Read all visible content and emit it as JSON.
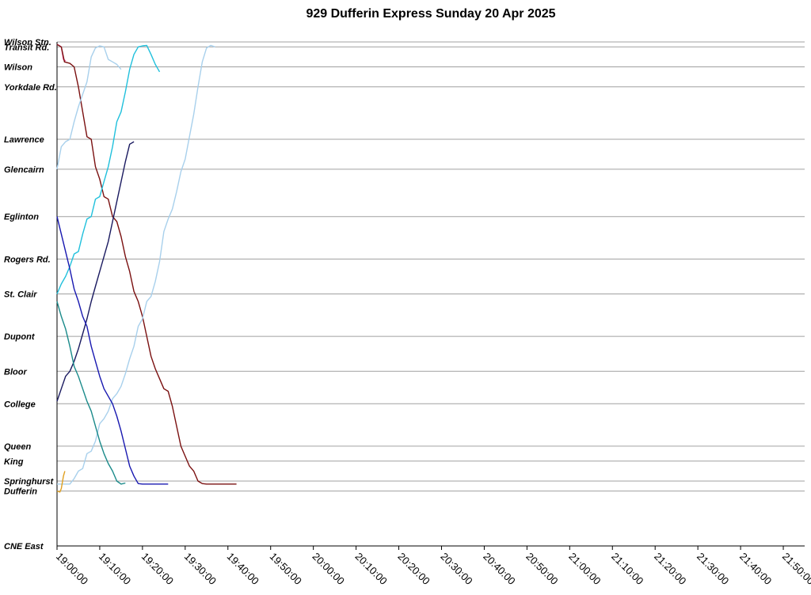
{
  "chart_data": {
    "type": "line",
    "title": "929 Dufferin Express Sunday 20 Apr 2025",
    "x_axis": {
      "unit": "time",
      "min": "19:00:00",
      "max": "21:55:00",
      "tick_labels": [
        "19:00:00",
        "19:10:00",
        "19:20:00",
        "19:30:00",
        "19:40:00",
        "19:50:00",
        "20:00:00",
        "20:10:00",
        "20:20:00",
        "20:30:00",
        "20:40:00",
        "20:50:00",
        "21:00:00",
        "21:10:00",
        "21:20:00",
        "21:30:00",
        "21:40:00",
        "21:50:00"
      ]
    },
    "stops": [
      {
        "name": "Wilson Stn.",
        "pos": 0
      },
      {
        "name": "Transit Rd.",
        "pos": 1
      },
      {
        "name": "Wilson",
        "pos": 5
      },
      {
        "name": "Yorkdale Rd.",
        "pos": 9
      },
      {
        "name": "Lawrence",
        "pos": 19.5
      },
      {
        "name": "Glencairn",
        "pos": 25.5
      },
      {
        "name": "Eglinton",
        "pos": 35
      },
      {
        "name": "Rogers Rd.",
        "pos": 43.5
      },
      {
        "name": "St. Clair",
        "pos": 50.5
      },
      {
        "name": "Dupont",
        "pos": 59
      },
      {
        "name": "Bloor",
        "pos": 66
      },
      {
        "name": "College",
        "pos": 72.5
      },
      {
        "name": "Queen",
        "pos": 81
      },
      {
        "name": "King",
        "pos": 84
      },
      {
        "name": "Springhurst",
        "pos": 88
      },
      {
        "name": "Dufferin",
        "pos": 90
      },
      {
        "name": "CNE East",
        "pos": 101
      }
    ],
    "series": [
      {
        "color": "#f0509c",
        "points": [
          [
            "19:00:00",
            0.5
          ],
          [
            "19:00:30",
            0.7
          ],
          [
            "19:01:00",
            1.0
          ],
          [
            "19:01:30",
            3.5
          ],
          [
            "19:02:00",
            3.8
          ]
        ]
      },
      {
        "color": "#7a1010",
        "points": [
          [
            "19:00:00",
            0.5
          ],
          [
            "19:01:00",
            1.0
          ],
          [
            "19:01:45",
            4.0
          ],
          [
            "19:03:00",
            4.3
          ],
          [
            "19:04:00",
            5.0
          ],
          [
            "19:05:00",
            9.0
          ],
          [
            "19:06:00",
            14.0
          ],
          [
            "19:07:00",
            19.0
          ],
          [
            "19:08:00",
            19.5
          ],
          [
            "19:09:00",
            25.0
          ],
          [
            "19:10:00",
            27.5
          ],
          [
            "19:11:00",
            31.0
          ],
          [
            "19:12:00",
            31.5
          ],
          [
            "19:13:00",
            35.0
          ],
          [
            "19:14:00",
            36.0
          ],
          [
            "19:15:00",
            39.0
          ],
          [
            "19:16:00",
            43.0
          ],
          [
            "19:17:00",
            46.0
          ],
          [
            "19:18:00",
            50.0
          ],
          [
            "19:19:00",
            52.0
          ],
          [
            "19:20:00",
            55.0
          ],
          [
            "19:21:00",
            59.0
          ],
          [
            "19:22:00",
            63.0
          ],
          [
            "19:23:00",
            65.5
          ],
          [
            "19:24:00",
            67.5
          ],
          [
            "19:25:00",
            69.5
          ],
          [
            "19:26:00",
            70.0
          ],
          [
            "19:27:00",
            73.0
          ],
          [
            "19:28:00",
            77.0
          ],
          [
            "19:29:00",
            81.0
          ],
          [
            "19:30:00",
            83.0
          ],
          [
            "19:31:00",
            85.0
          ],
          [
            "19:32:00",
            86.0
          ],
          [
            "19:33:00",
            88.0
          ],
          [
            "19:34:00",
            88.5
          ],
          [
            "19:35:00",
            88.6
          ],
          [
            "19:37:00",
            88.6
          ],
          [
            "19:42:00",
            88.6
          ]
        ]
      },
      {
        "color": "#a8d0ec",
        "points": [
          [
            "19:00:00",
            25.5
          ],
          [
            "19:01:00",
            21.0
          ],
          [
            "19:02:00",
            20.0
          ],
          [
            "19:03:00",
            19.5
          ],
          [
            "19:04:00",
            16.0
          ],
          [
            "19:05:00",
            13.0
          ],
          [
            "19:06:00",
            10.5
          ],
          [
            "19:07:00",
            8.0
          ],
          [
            "19:08:00",
            3.0
          ],
          [
            "19:09:00",
            1.2
          ],
          [
            "19:10:00",
            0.8
          ],
          [
            "19:11:00",
            1.0
          ],
          [
            "19:12:00",
            3.5
          ],
          [
            "19:13:00",
            4.0
          ],
          [
            "19:14:00",
            4.5
          ],
          [
            "19:15:00",
            5.5
          ]
        ]
      },
      {
        "color": "#a8d0ec",
        "points": [
          [
            "19:00:00",
            88.6
          ],
          [
            "19:03:00",
            88.6
          ],
          [
            "19:04:00",
            87.5
          ],
          [
            "19:05:00",
            86.0
          ],
          [
            "19:06:00",
            85.5
          ],
          [
            "19:07:00",
            82.5
          ],
          [
            "19:08:00",
            82.0
          ],
          [
            "19:09:00",
            80.0
          ],
          [
            "19:10:00",
            76.5
          ],
          [
            "19:11:00",
            75.5
          ],
          [
            "19:12:00",
            74.0
          ],
          [
            "19:13:00",
            71.5
          ],
          [
            "19:14:00",
            70.5
          ],
          [
            "19:15:00",
            69.0
          ],
          [
            "19:16:00",
            66.5
          ],
          [
            "19:17:00",
            63.5
          ],
          [
            "19:18:00",
            61.0
          ],
          [
            "19:19:00",
            57.0
          ],
          [
            "19:20:00",
            55.5
          ],
          [
            "19:21:00",
            52.0
          ],
          [
            "19:22:00",
            51.0
          ],
          [
            "19:23:00",
            48.0
          ],
          [
            "19:24:00",
            44.0
          ],
          [
            "19:25:00",
            38.0
          ],
          [
            "19:26:00",
            35.5
          ],
          [
            "19:27:00",
            33.5
          ],
          [
            "19:28:00",
            30.0
          ],
          [
            "19:29:00",
            26.0
          ],
          [
            "19:30:00",
            23.5
          ],
          [
            "19:31:00",
            19.0
          ],
          [
            "19:32:00",
            14.5
          ],
          [
            "19:33:00",
            9.0
          ],
          [
            "19:34:00",
            4.0
          ],
          [
            "19:35:00",
            1.2
          ],
          [
            "19:36:00",
            0.7
          ],
          [
            "19:37:00",
            1.0
          ]
        ]
      },
      {
        "color": "#20c0dc",
        "points": [
          [
            "19:00:00",
            50.5
          ],
          [
            "19:01:00",
            48.5
          ],
          [
            "19:02:00",
            47.0
          ],
          [
            "19:03:00",
            45.0
          ],
          [
            "19:04:00",
            42.5
          ],
          [
            "19:05:00",
            42.0
          ],
          [
            "19:06:00",
            38.5
          ],
          [
            "19:07:00",
            35.5
          ],
          [
            "19:08:00",
            35.0
          ],
          [
            "19:09:00",
            31.5
          ],
          [
            "19:10:00",
            31.0
          ],
          [
            "19:11:00",
            28.0
          ],
          [
            "19:12:00",
            25.0
          ],
          [
            "19:13:00",
            21.0
          ],
          [
            "19:14:00",
            16.0
          ],
          [
            "19:15:00",
            14.0
          ],
          [
            "19:16:00",
            10.0
          ],
          [
            "19:17:00",
            5.5
          ],
          [
            "19:18:00",
            2.5
          ],
          [
            "19:19:00",
            1.0
          ],
          [
            "19:20:00",
            0.8
          ],
          [
            "19:21:00",
            0.7
          ],
          [
            "19:22:00",
            2.5
          ],
          [
            "19:23:00",
            4.5
          ],
          [
            "19:24:00",
            6.0
          ]
        ]
      },
      {
        "color": "#1a1a60",
        "points": [
          [
            "19:00:00",
            72.0
          ],
          [
            "19:01:00",
            69.5
          ],
          [
            "19:02:00",
            67.0
          ],
          [
            "19:03:00",
            66.0
          ],
          [
            "19:04:00",
            64.0
          ],
          [
            "19:05:00",
            61.5
          ],
          [
            "19:06:00",
            58.5
          ],
          [
            "19:07:00",
            55.5
          ],
          [
            "19:08:00",
            52.0
          ],
          [
            "19:09:00",
            49.0
          ],
          [
            "19:10:00",
            46.0
          ],
          [
            "19:11:00",
            43.0
          ],
          [
            "19:12:00",
            40.0
          ],
          [
            "19:13:00",
            36.0
          ],
          [
            "19:14:00",
            32.0
          ],
          [
            "19:15:00",
            28.0
          ],
          [
            "19:16:00",
            24.0
          ],
          [
            "19:17:00",
            20.5
          ],
          [
            "19:18:00",
            20.0
          ]
        ]
      },
      {
        "color": "#1818b0",
        "points": [
          [
            "19:00:00",
            35.0
          ],
          [
            "19:01:00",
            38.5
          ],
          [
            "19:02:00",
            42.0
          ],
          [
            "19:03:00",
            45.5
          ],
          [
            "19:04:00",
            49.5
          ],
          [
            "19:05:00",
            52.0
          ],
          [
            "19:06:00",
            55.0
          ],
          [
            "19:07:00",
            57.0
          ],
          [
            "19:08:00",
            61.0
          ],
          [
            "19:09:00",
            64.0
          ],
          [
            "19:10:00",
            67.0
          ],
          [
            "19:11:00",
            69.5
          ],
          [
            "19:12:00",
            71.0
          ],
          [
            "19:13:00",
            72.5
          ],
          [
            "19:14:00",
            75.0
          ],
          [
            "19:15:00",
            78.0
          ],
          [
            "19:16:00",
            81.5
          ],
          [
            "19:17:00",
            85.0
          ],
          [
            "19:18:00",
            87.0
          ],
          [
            "19:19:00",
            88.5
          ],
          [
            "19:20:00",
            88.6
          ],
          [
            "19:26:00",
            88.6
          ]
        ]
      },
      {
        "color": "#1a8a8a",
        "points": [
          [
            "19:00:00",
            52.0
          ],
          [
            "19:01:00",
            55.0
          ],
          [
            "19:02:00",
            57.5
          ],
          [
            "19:03:00",
            61.0
          ],
          [
            "19:04:00",
            65.0
          ],
          [
            "19:05:00",
            67.0
          ],
          [
            "19:06:00",
            69.5
          ],
          [
            "19:07:00",
            72.0
          ],
          [
            "19:08:00",
            74.0
          ],
          [
            "19:09:00",
            77.0
          ],
          [
            "19:10:00",
            80.0
          ],
          [
            "19:11:00",
            82.5
          ],
          [
            "19:12:00",
            84.5
          ],
          [
            "19:13:00",
            86.0
          ],
          [
            "19:14:00",
            88.0
          ],
          [
            "19:15:00",
            88.6
          ],
          [
            "19:16:00",
            88.4
          ]
        ]
      },
      {
        "color": "#e0a020",
        "points": [
          [
            "19:00:00",
            90.0
          ],
          [
            "19:00:40",
            90.2
          ],
          [
            "19:01:00",
            89.5
          ],
          [
            "19:01:30",
            87.0
          ],
          [
            "19:01:50",
            86.0
          ]
        ]
      }
    ]
  }
}
